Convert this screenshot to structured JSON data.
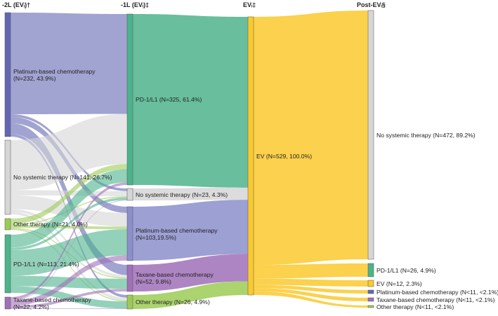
{
  "headers": [
    "-2L (EVᵢ)†",
    "-1L (EVᵢ)‡",
    "EVᵢ‡",
    "Post-EVᵢ§"
  ],
  "colors": {
    "platinum": "#6366b3",
    "platinum_light": "#8c8fcb",
    "no_systemic": "#d6d6d6",
    "other": "#9ccb55",
    "pd1": "#4db38c",
    "taxane": "#a070b8",
    "ev": "#fac92e"
  },
  "nodes": {
    "c0_plat": {
      "label": "Platinum-based chemotherapy\n(N=232, 43.9%)",
      "color": "platinum",
      "n": 232
    },
    "c0_nosys": {
      "label": "No systemic therapy (N=141, 26.7%)",
      "color": "no_systemic",
      "n": 141
    },
    "c0_other": {
      "label": "Other therapy (N=21, 4.0%)",
      "color": "other",
      "n": 21
    },
    "c0_pd1": {
      "label": "PD-1/L1 (N=113, 21.4%)",
      "color": "pd1",
      "n": 113
    },
    "c0_tax": {
      "label": "Taxane-based chemotherapy\n(N=22, 4.2%)",
      "color": "taxane",
      "n": 22
    },
    "c1_pd1": {
      "label": "PD-1/L1 (N=325, 61.4%)",
      "color": "pd1",
      "n": 325
    },
    "c1_nosys": {
      "label": "No systemic therapy (N=23, 4.3%)",
      "color": "no_systemic",
      "n": 23
    },
    "c1_plat": {
      "label": "Platinum-based chemotherapy\n(N=103,19.5%)",
      "color": "platinum_light",
      "n": 103
    },
    "c1_tax": {
      "label": "Taxane-based chemotherapy\n(N=52, 9.8%)",
      "color": "taxane",
      "n": 52
    },
    "c1_other": {
      "label": "Other therapy (N=26, 4.9%)",
      "color": "other",
      "n": 26
    },
    "c2_ev": {
      "label": "EV (N=529, 100.0%)",
      "color": "ev",
      "n": 529
    },
    "c3_nosys": {
      "label": "No systemic therapy (N=472, 89.2%)",
      "color": "no_systemic",
      "n": 472
    },
    "c3_pd1": {
      "label": "PD-1/L1 (N=26, 4.9%)",
      "color": "pd1",
      "n": 26
    },
    "c3_ev": {
      "label": "EV (N=12, 2.3%)",
      "color": "ev",
      "n": 12
    },
    "c3_plat": {
      "label": "Platinum-based chemotherapy (N<11, <2.1%)",
      "color": "platinum",
      "n": "<11"
    },
    "c3_tax": {
      "label": "Taxane-based chemotherapy (N<11, <2.1%)",
      "color": "taxane",
      "n": "<11"
    },
    "c3_other": {
      "label": "Other therapy (N<11, <2.1%)",
      "color": "other",
      "n": "<11"
    }
  },
  "flows": [
    [
      "c0_plat",
      "c1_pd1",
      190
    ],
    [
      "c0_plat",
      "c1_nosys",
      5
    ],
    [
      "c0_plat",
      "c1_plat",
      12
    ],
    [
      "c0_plat",
      "c1_tax",
      20
    ],
    [
      "c0_plat",
      "c1_other",
      5
    ],
    [
      "c0_nosys",
      "c1_pd1",
      95
    ],
    [
      "c0_nosys",
      "c1_nosys",
      10
    ],
    [
      "c0_nosys",
      "c1_plat",
      26
    ],
    [
      "c0_nosys",
      "c1_tax",
      5
    ],
    [
      "c0_nosys",
      "c1_other",
      5
    ],
    [
      "c0_other",
      "c1_pd1",
      10
    ],
    [
      "c0_other",
      "c1_nosys",
      2
    ],
    [
      "c0_other",
      "c1_plat",
      5
    ],
    [
      "c0_other",
      "c1_tax",
      2
    ],
    [
      "c0_other",
      "c1_other",
      2
    ],
    [
      "c0_pd1",
      "c1_pd1",
      25
    ],
    [
      "c0_pd1",
      "c1_nosys",
      5
    ],
    [
      "c0_pd1",
      "c1_plat",
      50
    ],
    [
      "c0_pd1",
      "c1_tax",
      20
    ],
    [
      "c0_pd1",
      "c1_other",
      13
    ],
    [
      "c0_tax",
      "c1_pd1",
      5
    ],
    [
      "c0_tax",
      "c1_nosys",
      1
    ],
    [
      "c0_tax",
      "c1_plat",
      10
    ],
    [
      "c0_tax",
      "c1_tax",
      5
    ],
    [
      "c0_tax",
      "c1_other",
      1
    ],
    [
      "c1_pd1",
      "c2_ev",
      325
    ],
    [
      "c1_nosys",
      "c2_ev",
      23
    ],
    [
      "c1_plat",
      "c2_ev",
      103
    ],
    [
      "c1_tax",
      "c2_ev",
      52
    ],
    [
      "c1_other",
      "c2_ev",
      26
    ],
    [
      "c2_ev",
      "c3_nosys",
      472
    ],
    [
      "c2_ev",
      "c3_pd1",
      26
    ],
    [
      "c2_ev",
      "c3_ev",
      12
    ],
    [
      "c2_ev",
      "c3_plat",
      6
    ],
    [
      "c2_ev",
      "c3_tax",
      6
    ],
    [
      "c2_ev",
      "c3_other",
      7
    ]
  ]
}
